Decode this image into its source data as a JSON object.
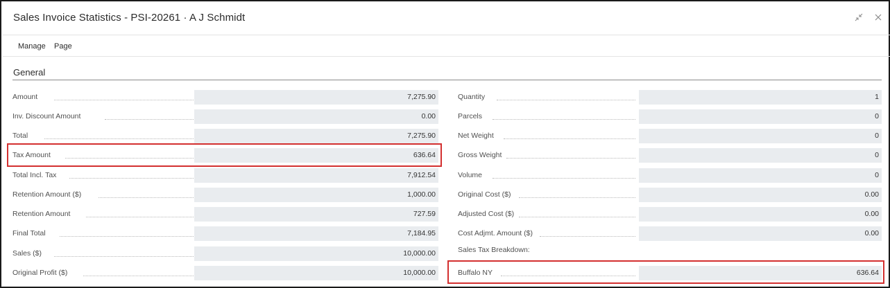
{
  "window": {
    "title": "Sales Invoice Statistics - PSI-20261 · A J Schmidt"
  },
  "actions": {
    "manage": "Manage",
    "page": "Page"
  },
  "section": {
    "general": "General"
  },
  "left_fields": [
    {
      "label": "Amount",
      "value": "7,275.90"
    },
    {
      "label": "Inv. Discount Amount",
      "value": "0.00"
    },
    {
      "label": "Total",
      "value": "7,275.90"
    },
    {
      "label": "Tax Amount",
      "value": "636.64"
    },
    {
      "label": "Total Incl. Tax",
      "value": "7,912.54"
    },
    {
      "label": "Retention Amount ($)",
      "value": "1,000.00"
    },
    {
      "label": "Retention Amount",
      "value": "727.59"
    },
    {
      "label": "Final Total",
      "value": "7,184.95"
    },
    {
      "label": "Sales ($)",
      "value": "10,000.00"
    },
    {
      "label": "Original Profit ($)",
      "value": "10,000.00"
    }
  ],
  "right_fields": [
    {
      "label": "Quantity",
      "value": "1"
    },
    {
      "label": "Parcels",
      "value": "0"
    },
    {
      "label": "Net Weight",
      "value": "0"
    },
    {
      "label": "Gross Weight",
      "value": "0"
    },
    {
      "label": "Volume",
      "value": "0"
    },
    {
      "label": "Original Cost ($)",
      "value": "0.00"
    },
    {
      "label": "Adjusted Cost ($)",
      "value": "0.00"
    },
    {
      "label": "Cost Adjmt. Amount ($)",
      "value": "0.00"
    }
  ],
  "tax_breakdown": {
    "heading": "Sales Tax Breakdown:",
    "items": [
      {
        "label": "Buffalo NY",
        "value": "636.64"
      }
    ]
  },
  "colors": {
    "highlight": "#d32f2f",
    "field_bg": "#e9ecef"
  }
}
